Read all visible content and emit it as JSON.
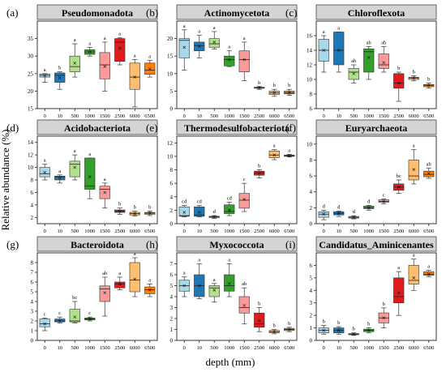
{
  "figure": {
    "ylabel": "Relative abundance (%)",
    "xlabel": "depth (mm)"
  },
  "colors": [
    "#a8d8ea",
    "#1f78b4",
    "#b2df8a",
    "#33a02c",
    "#fb9a99",
    "#e31a1c",
    "#fdbf6f",
    "#ff7f00"
  ],
  "chart_data": [
    {
      "type": "box",
      "panel": "(a)",
      "title": "Pseudomonadota",
      "categories": [
        "0",
        "10",
        "500",
        "1000",
        "1500",
        "2500",
        "6000",
        "6500"
      ],
      "ylim": [
        15,
        40
      ],
      "yticks": [
        15,
        20,
        25,
        30,
        35
      ],
      "boxes": [
        {
          "min": 22.5,
          "q1": 24.0,
          "med": 24.5,
          "q3": 24.9,
          "max": 25.0,
          "mean": 24.4
        },
        {
          "min": 20.5,
          "q1": 22.5,
          "med": 24.5,
          "q3": 25.2,
          "max": 25.5,
          "mean": 23.8
        },
        {
          "min": 24.0,
          "q1": 25.5,
          "med": 27.0,
          "q3": 30.0,
          "max": 33.5,
          "mean": 28.0
        },
        {
          "min": 30.0,
          "q1": 30.5,
          "med": 31.2,
          "q3": 31.8,
          "max": 32.5,
          "mean": 31.2
        },
        {
          "min": 20.0,
          "q1": 23.5,
          "med": 27.5,
          "q3": 31.0,
          "max": 34.0,
          "mean": 27.0
        },
        {
          "min": 27.5,
          "q1": 28.5,
          "med": 34.0,
          "q3": 35.0,
          "max": 35.2,
          "mean": 32.3
        },
        {
          "min": 15.5,
          "q1": 20.5,
          "med": 24.0,
          "q3": 28.0,
          "max": 29.0,
          "mean": 24.0
        },
        {
          "min": 24.0,
          "q1": 24.8,
          "med": 26.0,
          "q3": 28.0,
          "max": 28.8,
          "mean": 26.3
        }
      ],
      "letters": [
        "a",
        "b",
        "a",
        "a",
        "a",
        "a",
        "a",
        "a"
      ]
    },
    {
      "type": "box",
      "panel": "(b)",
      "title": "Actinomycetota",
      "categories": [
        "0",
        "10",
        "500",
        "1000",
        "1500",
        "2500",
        "6000",
        "6500"
      ],
      "ylim": [
        0,
        25
      ],
      "yticks": [
        0,
        5,
        10,
        15,
        20
      ],
      "boxes": [
        {
          "min": 11.0,
          "q1": 14.5,
          "med": 19.5,
          "q3": 20.0,
          "max": 22.5,
          "mean": 17.5
        },
        {
          "min": 14.5,
          "q1": 16.5,
          "med": 18.0,
          "q3": 19.0,
          "max": 21.0,
          "mean": 17.8
        },
        {
          "min": 17.0,
          "q1": 17.5,
          "med": 18.5,
          "q3": 20.0,
          "max": 22.0,
          "mean": 19.0
        },
        {
          "min": 12.0,
          "q1": 12.2,
          "med": 14.0,
          "q3": 15.0,
          "max": 16.5,
          "mean": 14.0
        },
        {
          "min": 8.0,
          "q1": 10.5,
          "med": 14.0,
          "q3": 16.5,
          "max": 19.0,
          "mean": 14.0
        },
        {
          "min": 5.5,
          "q1": 5.8,
          "med": 6.0,
          "q3": 6.1,
          "max": 6.3,
          "mean": 6.0
        },
        {
          "min": 3.5,
          "q1": 4.0,
          "med": 4.5,
          "q3": 5.0,
          "max": 5.5,
          "mean": 4.5
        },
        {
          "min": 3.8,
          "q1": 4.2,
          "med": 4.5,
          "q3": 5.0,
          "max": 5.5,
          "mean": 4.6
        }
      ],
      "letters": [
        "a",
        "a",
        "a",
        "a",
        "a",
        "b",
        "b",
        "b"
      ]
    },
    {
      "type": "box",
      "panel": "(c)",
      "title": "Chloroflexota",
      "categories": [
        "0",
        "10",
        "500",
        "1000",
        "1500",
        "2500",
        "6000",
        "6500"
      ],
      "ylim": [
        6,
        18
      ],
      "yticks": [
        6,
        8,
        10,
        12,
        14,
        16
      ],
      "boxes": [
        {
          "min": 11.0,
          "q1": 12.5,
          "med": 14.0,
          "q3": 15.5,
          "max": 16.0,
          "mean": 14.0
        },
        {
          "min": 11.0,
          "q1": 12.0,
          "med": 14.0,
          "q3": 16.5,
          "max": 16.5,
          "mean": 14.0
        },
        {
          "min": 9.5,
          "q1": 10.0,
          "med": 11.0,
          "q3": 11.5,
          "max": 12.0,
          "mean": 10.8
        },
        {
          "min": 10.0,
          "q1": 11.0,
          "med": 13.8,
          "q3": 14.2,
          "max": 14.5,
          "mean": 13.0
        },
        {
          "min": 11.0,
          "q1": 11.5,
          "med": 12.0,
          "q3": 13.5,
          "max": 14.5,
          "mean": 12.3
        },
        {
          "min": 7.0,
          "q1": 8.8,
          "med": 9.5,
          "q3": 10.8,
          "max": 11.0,
          "mean": 9.5
        },
        {
          "min": 9.8,
          "q1": 10.0,
          "med": 10.2,
          "q3": 10.3,
          "max": 10.5,
          "mean": 10.2
        },
        {
          "min": 8.8,
          "q1": 9.0,
          "med": 9.2,
          "q3": 9.3,
          "max": 9.5,
          "mean": 9.2
        }
      ],
      "letters": [
        "a",
        "a",
        "ab",
        "ab",
        "ab",
        "b",
        "b",
        "b"
      ]
    },
    {
      "type": "box",
      "panel": "(d)",
      "title": "Acidobacteriota",
      "categories": [
        "0",
        "10",
        "500",
        "1000",
        "1500",
        "2500",
        "6000",
        "6500"
      ],
      "ylim": [
        1,
        15
      ],
      "yticks": [
        2,
        4,
        6,
        8,
        10,
        12,
        14
      ],
      "boxes": [
        {
          "min": 8.0,
          "q1": 8.5,
          "med": 9.0,
          "q3": 10.0,
          "max": 10.5,
          "mean": 9.2
        },
        {
          "min": 7.5,
          "q1": 8.0,
          "med": 8.5,
          "q3": 8.6,
          "max": 8.8,
          "mean": 8.3
        },
        {
          "min": 8.0,
          "q1": 8.5,
          "med": 10.5,
          "q3": 11.0,
          "max": 12.0,
          "mean": 10.0
        },
        {
          "min": 5.0,
          "q1": 6.5,
          "med": 7.0,
          "q3": 11.5,
          "max": 11.5,
          "mean": 8.5
        },
        {
          "min": 3.5,
          "q1": 5.0,
          "med": 6.5,
          "q3": 7.0,
          "max": 7.5,
          "mean": 6.0
        },
        {
          "min": 2.5,
          "q1": 2.8,
          "med": 3.0,
          "q3": 3.2,
          "max": 3.5,
          "mean": 3.0
        },
        {
          "min": 2.2,
          "q1": 2.4,
          "med": 2.6,
          "q3": 2.8,
          "max": 3.0,
          "mean": 2.6
        },
        {
          "min": 2.3,
          "q1": 2.5,
          "med": 2.7,
          "q3": 2.8,
          "max": 3.0,
          "mean": 2.7
        }
      ],
      "letters": [
        "a",
        "a",
        "a",
        "a",
        "a",
        "b",
        "b",
        "b"
      ]
    },
    {
      "type": "box",
      "panel": "(e)",
      "title": "Thermodesulfobacteriota",
      "categories": [
        "0",
        "10",
        "500",
        "1000",
        "1500",
        "2500",
        "6000",
        "6500"
      ],
      "ylim": [
        0,
        13
      ],
      "yticks": [
        0,
        2,
        4,
        6,
        8,
        10,
        12
      ],
      "boxes": [
        {
          "min": 1.0,
          "q1": 1.1,
          "med": 1.2,
          "q3": 2.5,
          "max": 2.7,
          "mean": 1.7
        },
        {
          "min": 1.0,
          "q1": 1.1,
          "med": 1.3,
          "q3": 2.5,
          "max": 2.7,
          "mean": 1.7
        },
        {
          "min": 0.8,
          "q1": 0.9,
          "med": 1.0,
          "q3": 1.1,
          "max": 1.2,
          "mean": 1.0
        },
        {
          "min": 1.2,
          "q1": 1.5,
          "med": 1.8,
          "q3": 2.8,
          "max": 3.2,
          "mean": 2.0
        },
        {
          "min": 1.8,
          "q1": 2.3,
          "med": 3.5,
          "q3": 4.5,
          "max": 6.0,
          "mean": 3.6
        },
        {
          "min": 6.8,
          "q1": 7.2,
          "med": 7.5,
          "q3": 7.8,
          "max": 8.0,
          "mean": 7.5
        },
        {
          "min": 9.5,
          "q1": 9.8,
          "med": 10.2,
          "q3": 10.8,
          "max": 11.0,
          "mean": 10.2
        },
        {
          "min": 9.9,
          "q1": 10.0,
          "med": 10.1,
          "q3": 10.2,
          "max": 10.3,
          "mean": 10.1
        }
      ],
      "letters": [
        "cd",
        "cd",
        "d",
        "cd",
        "c",
        "b",
        "a",
        "a"
      ]
    },
    {
      "type": "box",
      "panel": "(f)",
      "title": "Euryarchaeota",
      "categories": [
        "0",
        "10",
        "500",
        "1000",
        "1500",
        "2500",
        "6000",
        "6500"
      ],
      "ylim": [
        0,
        11
      ],
      "yticks": [
        0,
        2,
        4,
        6,
        8,
        10
      ],
      "boxes": [
        {
          "min": 0.5,
          "q1": 0.8,
          "med": 1.2,
          "q3": 1.5,
          "max": 1.7,
          "mean": 1.2
        },
        {
          "min": 0.9,
          "q1": 1.1,
          "med": 1.3,
          "q3": 1.5,
          "max": 1.6,
          "mean": 1.3
        },
        {
          "min": 0.6,
          "q1": 0.7,
          "med": 0.8,
          "q3": 0.9,
          "max": 1.0,
          "mean": 0.8
        },
        {
          "min": 1.7,
          "q1": 1.9,
          "med": 2.0,
          "q3": 2.2,
          "max": 2.3,
          "mean": 2.0
        },
        {
          "min": 2.5,
          "q1": 2.7,
          "med": 2.8,
          "q3": 3.0,
          "max": 3.1,
          "mean": 2.8
        },
        {
          "min": 3.8,
          "q1": 4.2,
          "med": 4.6,
          "q3": 5.0,
          "max": 5.5,
          "mean": 4.6
        },
        {
          "min": 5.0,
          "q1": 5.5,
          "med": 6.0,
          "q3": 8.0,
          "max": 9.3,
          "mean": 6.8
        },
        {
          "min": 5.7,
          "q1": 5.9,
          "med": 6.2,
          "q3": 6.6,
          "max": 7.0,
          "mean": 6.3
        }
      ],
      "letters": [
        "d",
        "d",
        "d",
        "d",
        "c",
        "bc",
        "a",
        "ab"
      ]
    },
    {
      "type": "box",
      "panel": "(g)",
      "title": "Bacteroidota",
      "categories": [
        "0",
        "10",
        "500",
        "1000",
        "1500",
        "2500",
        "6000",
        "6500"
      ],
      "ylim": [
        0,
        9
      ],
      "yticks": [
        0,
        1,
        2,
        3,
        4,
        5,
        6,
        7,
        8
      ],
      "boxes": [
        {
          "min": 1.0,
          "q1": 1.4,
          "med": 1.7,
          "q3": 2.2,
          "max": 2.3,
          "mean": 1.7
        },
        {
          "min": 1.8,
          "q1": 1.9,
          "med": 2.0,
          "q3": 2.2,
          "max": 2.4,
          "mean": 2.0
        },
        {
          "min": 1.8,
          "q1": 1.9,
          "med": 2.0,
          "q3": 3.2,
          "max": 4.0,
          "mean": 2.4
        },
        {
          "min": 2.0,
          "q1": 2.1,
          "med": 2.2,
          "q3": 2.3,
          "max": 2.4,
          "mean": 2.2
        },
        {
          "min": 2.5,
          "q1": 4.0,
          "med": 5.3,
          "q3": 5.6,
          "max": 6.5,
          "mean": 4.9
        },
        {
          "min": 5.2,
          "q1": 5.4,
          "med": 5.8,
          "q3": 6.0,
          "max": 6.5,
          "mean": 5.8
        },
        {
          "min": 4.5,
          "q1": 5.0,
          "med": 6.2,
          "q3": 8.0,
          "max": 8.5,
          "mean": 6.3
        },
        {
          "min": 4.5,
          "q1": 4.8,
          "med": 5.2,
          "q3": 5.5,
          "max": 5.8,
          "mean": 5.2
        }
      ],
      "letters": [
        "c",
        "c",
        "bc",
        "c",
        "ab",
        "a",
        "a",
        "a"
      ]
    },
    {
      "type": "box",
      "panel": "(h)",
      "title": "Myxococcota",
      "categories": [
        "0",
        "10",
        "500",
        "1000",
        "1500",
        "2500",
        "6000",
        "6500"
      ],
      "ylim": [
        0,
        8
      ],
      "yticks": [
        0,
        1,
        2,
        3,
        4,
        5,
        6,
        7
      ],
      "boxes": [
        {
          "min": 4.0,
          "q1": 4.5,
          "med": 5.0,
          "q3": 5.5,
          "max": 5.8,
          "mean": 5.0
        },
        {
          "min": 3.8,
          "q1": 4.0,
          "med": 5.0,
          "q3": 6.0,
          "max": 7.0,
          "mean": 5.0
        },
        {
          "min": 3.5,
          "q1": 4.0,
          "med": 4.8,
          "q3": 5.0,
          "max": 5.2,
          "mean": 4.6
        },
        {
          "min": 4.0,
          "q1": 4.5,
          "med": 5.0,
          "q3": 6.0,
          "max": 7.0,
          "mean": 5.2
        },
        {
          "min": 1.5,
          "q1": 2.5,
          "med": 3.0,
          "q3": 4.0,
          "max": 4.8,
          "mean": 3.2
        },
        {
          "min": 0.8,
          "q1": 1.2,
          "med": 1.5,
          "q3": 2.5,
          "max": 3.0,
          "mean": 1.8
        },
        {
          "min": 0.6,
          "q1": 0.7,
          "med": 0.8,
          "q3": 0.9,
          "max": 1.0,
          "mean": 0.8
        },
        {
          "min": 0.8,
          "q1": 0.9,
          "med": 1.0,
          "q3": 1.1,
          "max": 1.2,
          "mean": 1.0
        }
      ],
      "letters": [
        "a",
        "a",
        "a",
        "a",
        "ab",
        "b",
        "b",
        "b"
      ]
    },
    {
      "type": "box",
      "panel": "(i)",
      "title": "Candidatus_Aminicenantes",
      "categories": [
        "0",
        "10",
        "500",
        "1000",
        "1500",
        "2500",
        "6000",
        "6500"
      ],
      "ylim": [
        0,
        7
      ],
      "yticks": [
        0,
        1,
        2,
        3,
        4,
        5,
        6
      ],
      "boxes": [
        {
          "min": 0.5,
          "q1": 0.6,
          "med": 0.8,
          "q3": 1.0,
          "max": 1.2,
          "mean": 0.8
        },
        {
          "min": 0.5,
          "q1": 0.6,
          "med": 0.8,
          "q3": 1.0,
          "max": 1.1,
          "mean": 0.8
        },
        {
          "min": 0.4,
          "q1": 0.45,
          "med": 0.5,
          "q3": 0.55,
          "max": 0.6,
          "mean": 0.5
        },
        {
          "min": 0.6,
          "q1": 0.7,
          "med": 0.8,
          "q3": 0.9,
          "max": 1.0,
          "mean": 0.8
        },
        {
          "min": 1.0,
          "q1": 1.4,
          "med": 1.8,
          "q3": 2.2,
          "max": 2.6,
          "mean": 1.8
        },
        {
          "min": 2.0,
          "q1": 3.0,
          "med": 3.5,
          "q3": 5.0,
          "max": 5.5,
          "mean": 3.8
        },
        {
          "min": 4.0,
          "q1": 4.5,
          "med": 4.8,
          "q3": 6.0,
          "max": 6.5,
          "mean": 5.0
        },
        {
          "min": 5.1,
          "q1": 5.2,
          "med": 5.3,
          "q3": 5.5,
          "max": 5.6,
          "mean": 5.3
        }
      ],
      "letters": [
        "b",
        "b",
        "b",
        "b",
        "b",
        "a",
        "a",
        "a"
      ]
    }
  ]
}
